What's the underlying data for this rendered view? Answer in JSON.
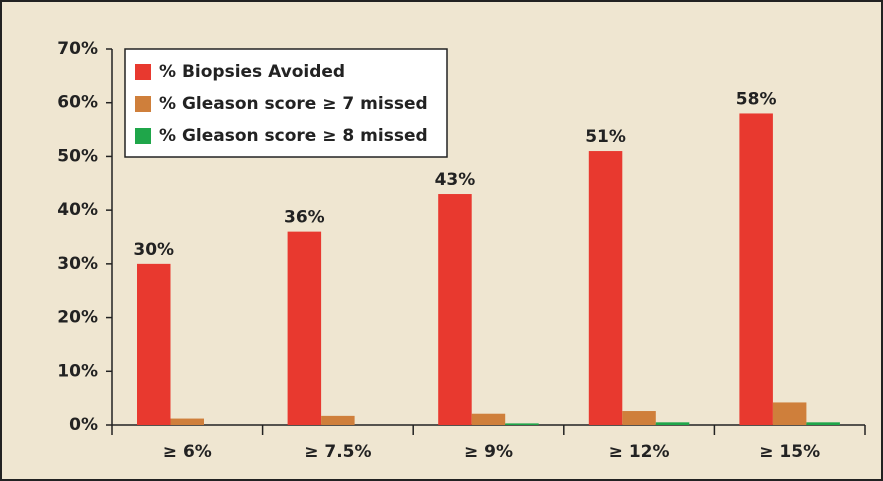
{
  "chart_data": {
    "type": "bar",
    "categories": [
      "≥ 6%",
      "≥ 7.5%",
      "≥ 9%",
      "≥ 12%",
      "≥ 15%"
    ],
    "series": [
      {
        "name": "% Biopsies Avoided",
        "color": "#e8392f",
        "values": [
          30,
          36,
          43,
          51,
          58
        ],
        "value_labels": [
          "30%",
          "36%",
          "43%",
          "51%",
          "58%"
        ]
      },
      {
        "name": "% Gleason score ≥ 7 missed",
        "color": "#cf7f3b",
        "values": [
          1.2,
          1.7,
          2.1,
          2.6,
          4.2
        ]
      },
      {
        "name": "% Gleason score ≥ 8 missed",
        "color": "#1fa64a",
        "values": [
          0,
          0,
          0.3,
          0.5,
          0.5
        ]
      }
    ],
    "ylim": [
      0,
      70
    ],
    "yticks": [
      {
        "value": 0,
        "label": "0%"
      },
      {
        "value": 10,
        "label": "10%"
      },
      {
        "value": 20,
        "label": "20%"
      },
      {
        "value": 30,
        "label": "30%"
      },
      {
        "value": 40,
        "label": "40%"
      },
      {
        "value": 50,
        "label": "50%"
      },
      {
        "value": 60,
        "label": "60%"
      },
      {
        "value": 70,
        "label": "70%"
      }
    ],
    "legend": "upper-left"
  }
}
